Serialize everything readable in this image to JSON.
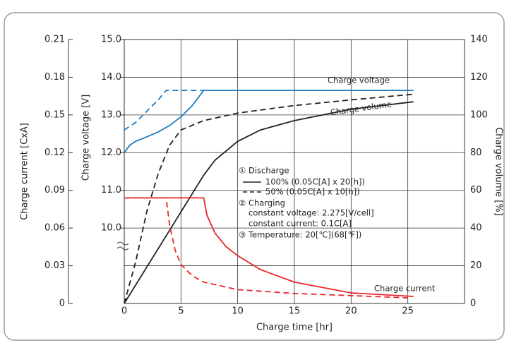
{
  "chart_data": {
    "type": "line",
    "xlabel": "Charge time [hr]",
    "ylabel": "Charge voltage [V]",
    "y2label": "Charge volume [%]",
    "y3label": "Charge current [CxA]",
    "xlim": [
      0,
      30
    ],
    "xticks": [
      0,
      5,
      10,
      15,
      20,
      25
    ],
    "ylim": [
      8,
      15
    ],
    "yticks": [
      {
        "value": 10,
        "label": "10.0"
      },
      {
        "value": 11,
        "label": "11.0"
      },
      {
        "value": 12,
        "label": "12.0"
      },
      {
        "value": 13,
        "label": "13.0"
      },
      {
        "value": 14,
        "label": "14.0"
      },
      {
        "value": 15,
        "label": "15.0"
      }
    ],
    "y2lim": [
      0,
      140
    ],
    "y2ticks": [
      0,
      20,
      40,
      60,
      80,
      100,
      120,
      140
    ],
    "y3lim": [
      0,
      0.21
    ],
    "y3ticks": [
      0,
      0.03,
      0.06,
      0.09,
      0.12,
      0.15,
      0.18,
      0.21
    ],
    "grid": true,
    "series": [
      {
        "color": "#1b7bbf",
        "style": "solid",
        "axis": "y",
        "x": [
          0,
          0.5,
          1,
          2,
          3,
          4,
          5,
          6,
          7,
          25.5
        ],
        "values": [
          12.0,
          12.2,
          12.3,
          12.42,
          12.55,
          12.72,
          12.95,
          13.25,
          13.65,
          13.65
        ]
      },
      {
        "color": "#1b7bbf",
        "style": "dashed",
        "axis": "y",
        "x": [
          0,
          1,
          2,
          3,
          3.7,
          7
        ],
        "values": [
          12.6,
          12.8,
          13.1,
          13.4,
          13.65,
          13.65
        ]
      },
      {
        "color": "#222222",
        "style": "solid",
        "axis": "y2",
        "x": [
          0,
          7,
          8,
          10,
          12,
          15,
          20,
          25.5
        ],
        "values": [
          0,
          68,
          76,
          86,
          92,
          97,
          103,
          107
        ]
      },
      {
        "color": "#222222",
        "style": "dashed",
        "axis": "y2",
        "x": [
          0,
          1,
          2,
          3,
          4,
          5,
          7,
          10,
          15,
          20,
          25.5
        ],
        "values": [
          0,
          22,
          49,
          69,
          84,
          92,
          97,
          101,
          105,
          108,
          111
        ]
      },
      {
        "color": "#e8262a",
        "style": "solid",
        "axis": "y3",
        "x": [
          0,
          7,
          7.3,
          8,
          9,
          10,
          12,
          15,
          20,
          25.5
        ],
        "values": [
          0.084,
          0.084,
          0.07,
          0.056,
          0.045,
          0.038,
          0.027,
          0.017,
          0.0084,
          0.0056
        ]
      },
      {
        "color": "#e8262a",
        "style": "dashed",
        "axis": "y3",
        "x": [
          0,
          3.7,
          4,
          4.5,
          5,
          6,
          7,
          10,
          15,
          25
        ],
        "values": [
          0.084,
          0.084,
          0.062,
          0.042,
          0.031,
          0.022,
          0.017,
          0.011,
          0.008,
          0.0045
        ]
      }
    ],
    "annotations": [
      "Charge voltage",
      "Charge volume",
      "Charge current"
    ],
    "legend_text": [
      "① Discharge",
      "100% (0.05C[A] x 20[h])",
      "50% (0.05C[A] x 10[h])",
      "② Charging",
      "constant voltage: 2.275[V/cell]",
      "constant current: 0.1C[A]",
      "③ Temperature: 20[℃](68[℉])"
    ]
  }
}
